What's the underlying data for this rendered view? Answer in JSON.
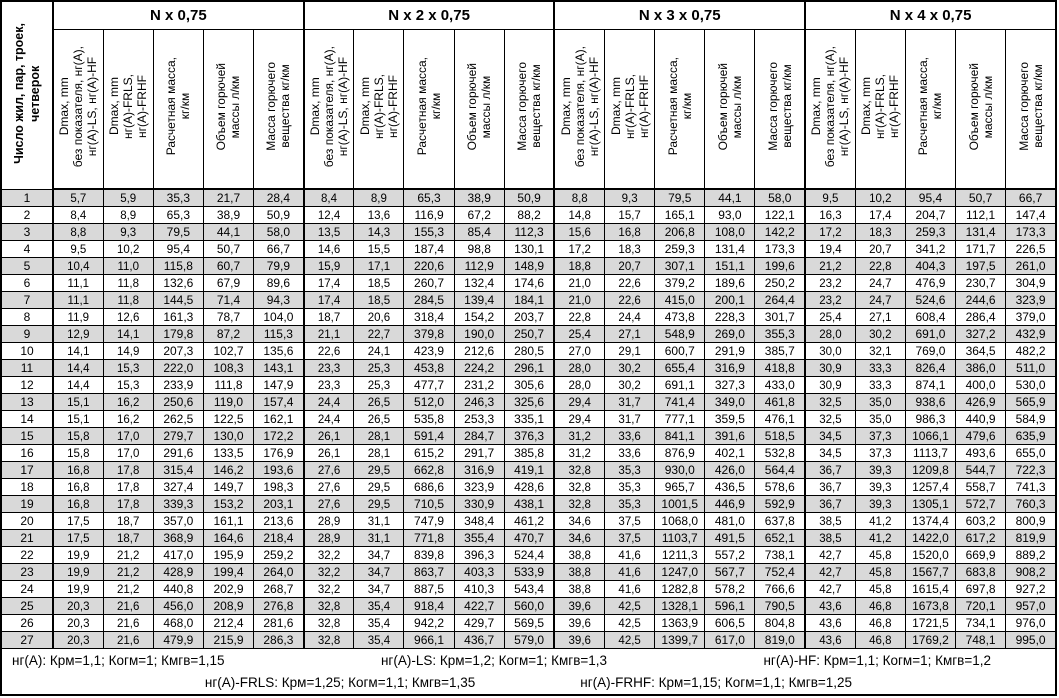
{
  "table": {
    "corner_header": "Число жил, пар, троек,\nчетверок",
    "groups": [
      "N x 0,75",
      "N x 2 x 0,75",
      "N x 3 x 0,75",
      "N x 4 x 0,75"
    ],
    "sub_headers": [
      "Dmax, mm\nбез показателя, нг(A),\nнг(A)-LS, нг(A)-HF",
      "Dmax, mm\nнг(A)-FRLS,\nнг(A)-FRHF",
      "Расчетная масса,\nкг/км",
      "Объем горючей\nмассы л/км",
      "Масса горючего\nвещества кг/км"
    ],
    "rows": [
      {
        "n": "1",
        "values": [
          "5,7",
          "5,9",
          "35,3",
          "21,7",
          "28,4",
          "8,4",
          "8,9",
          "65,3",
          "38,9",
          "50,9",
          "8,8",
          "9,3",
          "79,5",
          "44,1",
          "58,0",
          "9,5",
          "10,2",
          "95,4",
          "50,7",
          "66,7"
        ]
      },
      {
        "n": "2",
        "values": [
          "8,4",
          "8,9",
          "65,3",
          "38,9",
          "50,9",
          "12,4",
          "13,6",
          "116,9",
          "67,2",
          "88,2",
          "14,8",
          "15,7",
          "165,1",
          "93,0",
          "122,1",
          "16,3",
          "17,4",
          "204,7",
          "112,1",
          "147,4"
        ]
      },
      {
        "n": "3",
        "values": [
          "8,8",
          "9,3",
          "79,5",
          "44,1",
          "58,0",
          "13,5",
          "14,3",
          "155,3",
          "85,4",
          "112,3",
          "15,6",
          "16,8",
          "206,8",
          "108,0",
          "142,2",
          "17,2",
          "18,3",
          "259,3",
          "131,4",
          "173,3"
        ]
      },
      {
        "n": "4",
        "values": [
          "9,5",
          "10,2",
          "95,4",
          "50,7",
          "66,7",
          "14,6",
          "15,5",
          "187,4",
          "98,8",
          "130,1",
          "17,2",
          "18,3",
          "259,3",
          "131,4",
          "173,3",
          "19,4",
          "20,7",
          "341,2",
          "171,7",
          "226,5"
        ]
      },
      {
        "n": "5",
        "values": [
          "10,4",
          "11,0",
          "115,8",
          "60,7",
          "79,9",
          "15,9",
          "17,1",
          "220,6",
          "112,9",
          "148,9",
          "18,8",
          "20,7",
          "307,1",
          "151,1",
          "199,6",
          "21,2",
          "22,8",
          "404,3",
          "197,5",
          "261,0"
        ]
      },
      {
        "n": "6",
        "values": [
          "11,1",
          "11,8",
          "132,6",
          "67,9",
          "89,6",
          "17,4",
          "18,5",
          "260,7",
          "132,4",
          "174,6",
          "21,0",
          "22,6",
          "379,2",
          "189,6",
          "250,2",
          "23,2",
          "24,7",
          "476,9",
          "230,7",
          "304,9"
        ]
      },
      {
        "n": "7",
        "values": [
          "11,1",
          "11,8",
          "144,5",
          "71,4",
          "94,3",
          "17,4",
          "18,5",
          "284,5",
          "139,4",
          "184,1",
          "21,0",
          "22,6",
          "415,0",
          "200,1",
          "264,4",
          "23,2",
          "24,7",
          "524,6",
          "244,6",
          "323,9"
        ]
      },
      {
        "n": "8",
        "values": [
          "11,9",
          "12,6",
          "161,3",
          "78,7",
          "104,0",
          "18,7",
          "20,6",
          "318,4",
          "154,2",
          "203,7",
          "22,8",
          "24,4",
          "473,8",
          "228,3",
          "301,7",
          "25,4",
          "27,1",
          "608,4",
          "286,4",
          "379,0"
        ]
      },
      {
        "n": "9",
        "values": [
          "12,9",
          "14,1",
          "179,8",
          "87,2",
          "115,3",
          "21,1",
          "22,7",
          "379,8",
          "190,0",
          "250,7",
          "25,4",
          "27,1",
          "548,9",
          "269,0",
          "355,3",
          "28,0",
          "30,2",
          "691,0",
          "327,2",
          "432,9"
        ]
      },
      {
        "n": "10",
        "values": [
          "14,1",
          "14,9",
          "207,3",
          "102,7",
          "135,6",
          "22,6",
          "24,1",
          "423,9",
          "212,6",
          "280,5",
          "27,0",
          "29,1",
          "600,7",
          "291,9",
          "385,7",
          "30,0",
          "32,1",
          "769,0",
          "364,5",
          "482,2"
        ]
      },
      {
        "n": "11",
        "values": [
          "14,4",
          "15,3",
          "222,0",
          "108,3",
          "143,1",
          "23,3",
          "25,3",
          "453,8",
          "224,2",
          "296,1",
          "28,0",
          "30,2",
          "655,4",
          "316,9",
          "418,8",
          "30,9",
          "33,3",
          "826,4",
          "386,0",
          "511,0"
        ]
      },
      {
        "n": "12",
        "values": [
          "14,4",
          "15,3",
          "233,9",
          "111,8",
          "147,9",
          "23,3",
          "25,3",
          "477,7",
          "231,2",
          "305,6",
          "28,0",
          "30,2",
          "691,1",
          "327,3",
          "433,0",
          "30,9",
          "33,3",
          "874,1",
          "400,0",
          "530,0"
        ]
      },
      {
        "n": "13",
        "values": [
          "15,1",
          "16,2",
          "250,6",
          "119,0",
          "157,4",
          "24,4",
          "26,5",
          "512,0",
          "246,3",
          "325,6",
          "29,4",
          "31,7",
          "741,4",
          "349,0",
          "461,8",
          "32,5",
          "35,0",
          "938,6",
          "426,9",
          "565,9"
        ]
      },
      {
        "n": "14",
        "values": [
          "15,1",
          "16,2",
          "262,5",
          "122,5",
          "162,1",
          "24,4",
          "26,5",
          "535,8",
          "253,3",
          "335,1",
          "29,4",
          "31,7",
          "777,1",
          "359,5",
          "476,1",
          "32,5",
          "35,0",
          "986,3",
          "440,9",
          "584,9"
        ]
      },
      {
        "n": "15",
        "values": [
          "15,8",
          "17,0",
          "279,7",
          "130,0",
          "172,2",
          "26,1",
          "28,1",
          "591,4",
          "284,7",
          "376,3",
          "31,2",
          "33,6",
          "841,1",
          "391,6",
          "518,5",
          "34,5",
          "37,3",
          "1066,1",
          "479,6",
          "635,9"
        ]
      },
      {
        "n": "16",
        "values": [
          "15,8",
          "17,0",
          "291,6",
          "133,5",
          "176,9",
          "26,1",
          "28,1",
          "615,2",
          "291,7",
          "385,8",
          "31,2",
          "33,6",
          "876,9",
          "402,1",
          "532,8",
          "34,5",
          "37,3",
          "1113,7",
          "493,6",
          "655,0"
        ]
      },
      {
        "n": "17",
        "values": [
          "16,8",
          "17,8",
          "315,4",
          "146,2",
          "193,6",
          "27,6",
          "29,5",
          "662,8",
          "316,9",
          "419,1",
          "32,8",
          "35,3",
          "930,0",
          "426,0",
          "564,4",
          "36,7",
          "39,3",
          "1209,8",
          "544,7",
          "722,3"
        ]
      },
      {
        "n": "18",
        "values": [
          "16,8",
          "17,8",
          "327,4",
          "149,7",
          "198,3",
          "27,6",
          "29,5",
          "686,6",
          "323,9",
          "428,6",
          "32,8",
          "35,3",
          "965,7",
          "436,5",
          "578,6",
          "36,7",
          "39,3",
          "1257,4",
          "558,7",
          "741,3"
        ]
      },
      {
        "n": "19",
        "values": [
          "16,8",
          "17,8",
          "339,3",
          "153,2",
          "203,1",
          "27,6",
          "29,5",
          "710,5",
          "330,9",
          "438,1",
          "32,8",
          "35,3",
          "1001,5",
          "446,9",
          "592,9",
          "36,7",
          "39,3",
          "1305,1",
          "572,7",
          "760,3"
        ]
      },
      {
        "n": "20",
        "values": [
          "17,5",
          "18,7",
          "357,0",
          "161,1",
          "213,6",
          "28,9",
          "31,1",
          "747,9",
          "348,4",
          "461,2",
          "34,6",
          "37,5",
          "1068,0",
          "481,0",
          "637,8",
          "38,5",
          "41,2",
          "1374,4",
          "603,2",
          "800,9"
        ]
      },
      {
        "n": "21",
        "values": [
          "17,5",
          "18,7",
          "368,9",
          "164,6",
          "218,4",
          "28,9",
          "31,1",
          "771,8",
          "355,4",
          "470,7",
          "34,6",
          "37,5",
          "1103,7",
          "491,5",
          "652,1",
          "38,5",
          "41,2",
          "1422,0",
          "617,2",
          "819,9"
        ]
      },
      {
        "n": "22",
        "values": [
          "19,9",
          "21,2",
          "417,0",
          "195,9",
          "259,2",
          "32,2",
          "34,7",
          "839,8",
          "396,3",
          "524,4",
          "38,8",
          "41,6",
          "1211,3",
          "557,2",
          "738,1",
          "42,7",
          "45,8",
          "1520,0",
          "669,9",
          "889,2"
        ]
      },
      {
        "n": "23",
        "values": [
          "19,9",
          "21,2",
          "428,9",
          "199,4",
          "264,0",
          "32,2",
          "34,7",
          "863,7",
          "403,3",
          "533,9",
          "38,8",
          "41,6",
          "1247,0",
          "567,7",
          "752,4",
          "42,7",
          "45,8",
          "1567,7",
          "683,8",
          "908,2"
        ]
      },
      {
        "n": "24",
        "values": [
          "19,9",
          "21,2",
          "440,8",
          "202,9",
          "268,7",
          "32,2",
          "34,7",
          "887,5",
          "410,3",
          "543,4",
          "38,8",
          "41,6",
          "1282,8",
          "578,2",
          "766,6",
          "42,7",
          "45,8",
          "1615,4",
          "697,8",
          "927,2"
        ]
      },
      {
        "n": "25",
        "values": [
          "20,3",
          "21,6",
          "456,0",
          "208,9",
          "276,8",
          "32,8",
          "35,4",
          "918,4",
          "422,7",
          "560,0",
          "39,6",
          "42,5",
          "1328,1",
          "596,1",
          "790,5",
          "43,6",
          "46,8",
          "1673,8",
          "720,1",
          "957,0"
        ]
      },
      {
        "n": "26",
        "values": [
          "20,3",
          "21,6",
          "468,0",
          "212,4",
          "281,6",
          "32,8",
          "35,4",
          "942,2",
          "429,7",
          "569,5",
          "39,6",
          "42,5",
          "1363,9",
          "606,5",
          "804,8",
          "43,6",
          "46,8",
          "1721,5",
          "734,1",
          "976,0"
        ]
      },
      {
        "n": "27",
        "values": [
          "20,3",
          "21,6",
          "479,9",
          "215,9",
          "286,3",
          "32,8",
          "35,4",
          "966,1",
          "436,7",
          "579,0",
          "39,6",
          "42,5",
          "1399,7",
          "617,0",
          "819,0",
          "43,6",
          "46,8",
          "1769,2",
          "748,1",
          "995,0"
        ]
      }
    ],
    "footnotes": {
      "line1": [
        "нг(A): Крм=1,1;  Когм=1;  Кмгв=1,15",
        "нг(A)-LS: Крм=1,2;  Когм=1;  Кмгв=1,3",
        "нг(A)-HF: Крм=1,1;  Когм=1;  Кмгв=1,2"
      ],
      "line2": [
        "нг(A)-FRLS: Крм=1,25;  Когм=1,1;  Кмгв=1,35",
        "нг(A)-FRHF: Крм=1,15;  Когм=1,1;  Кмгв=1,25"
      ]
    }
  },
  "colors": {
    "row_shade": "#d9d9d9",
    "border": "#000000",
    "background": "#ffffff",
    "text": "#000000"
  }
}
